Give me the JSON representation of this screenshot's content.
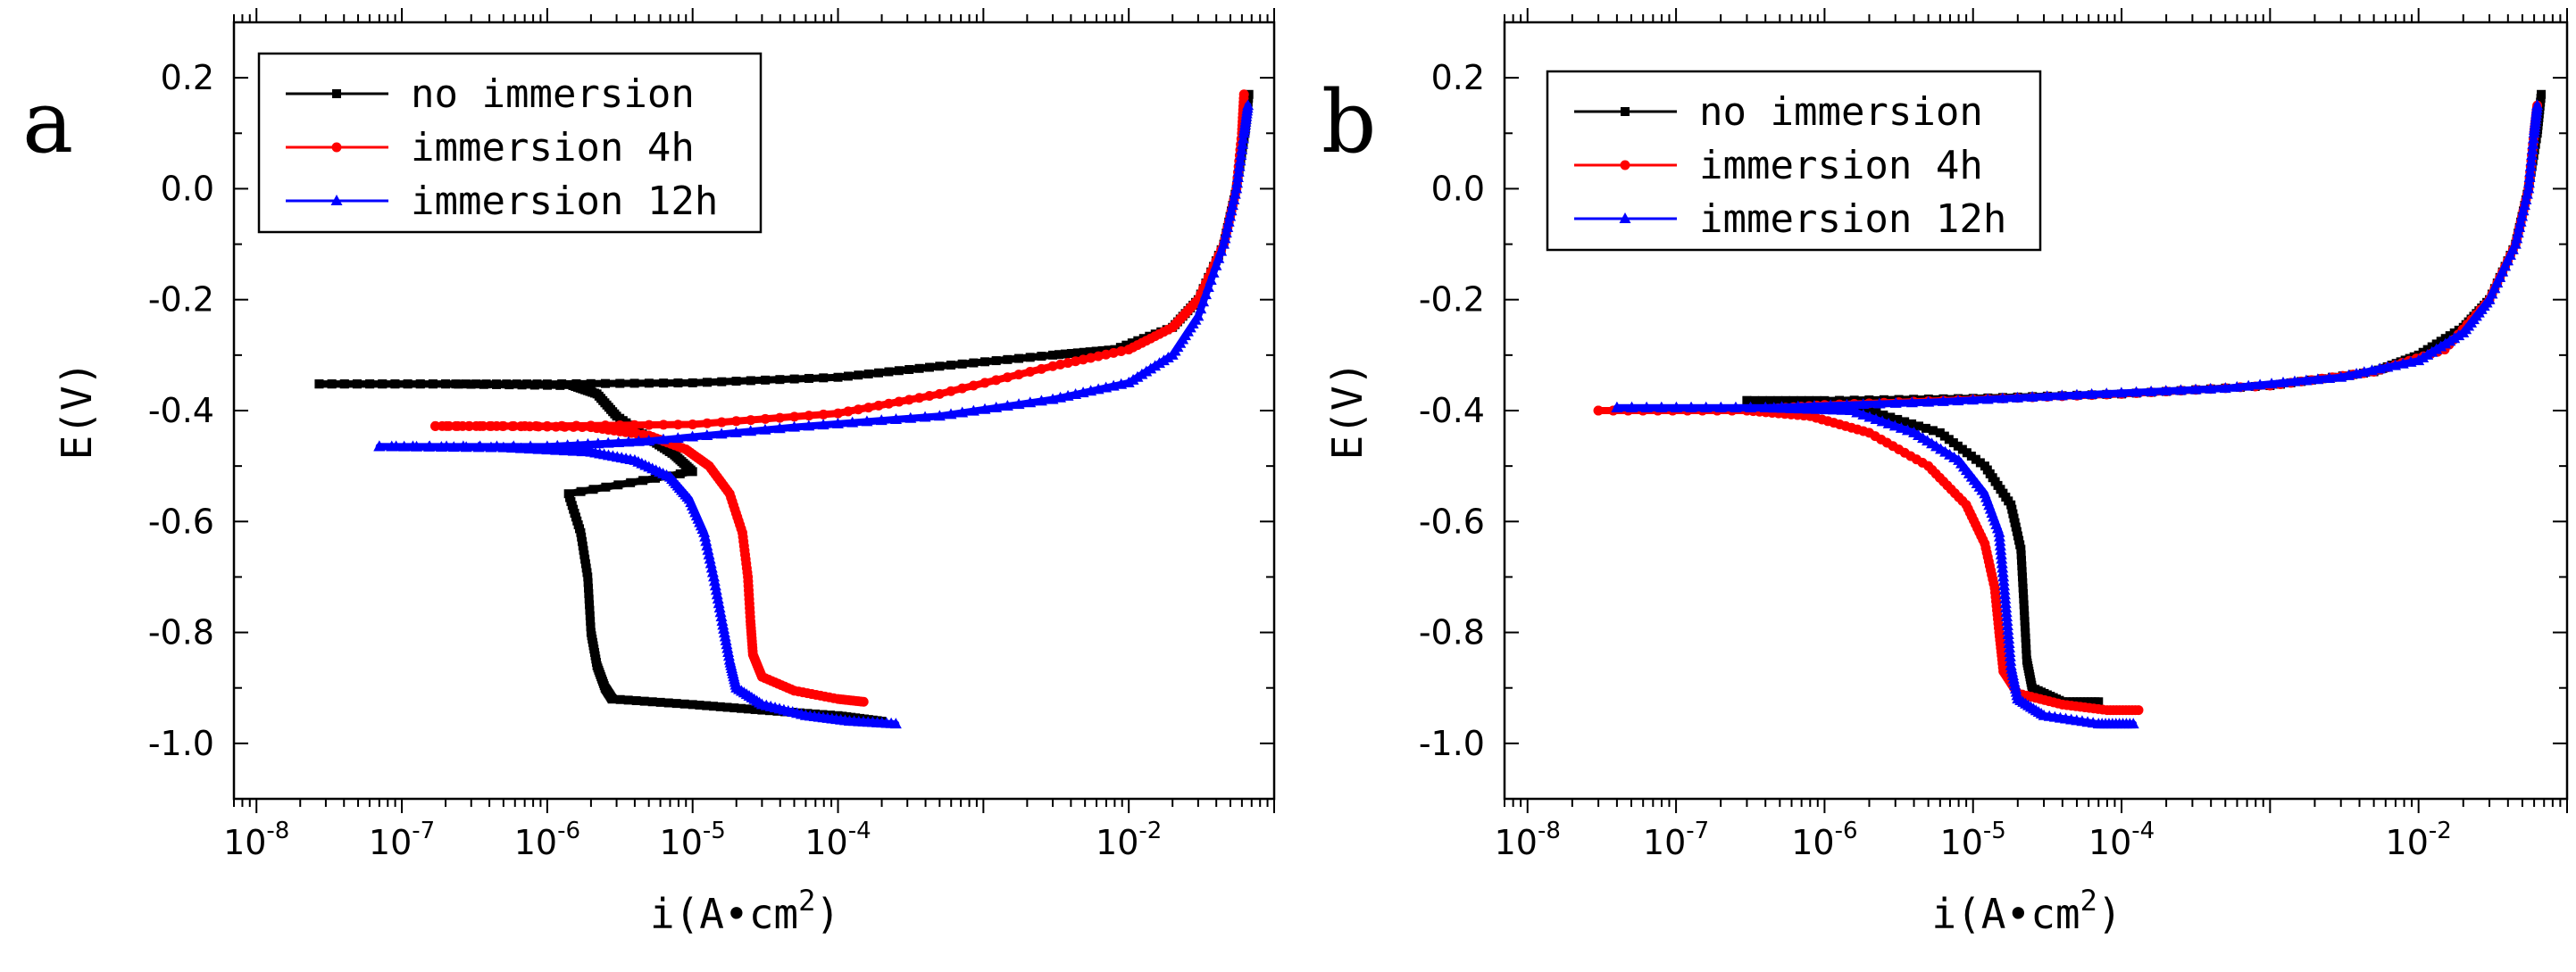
{
  "chart_data": [
    {
      "type": "line",
      "panel_label": "a",
      "xlabel": "i(A•cm",
      "xlabel_sup": "2",
      "xlabel_close": ")",
      "ylabel": "E(V)",
      "xscale": "log",
      "xlim": [
        7e-09,
        0.1
      ],
      "ylim": [
        -1.1,
        0.3
      ],
      "xticks": [
        {
          "value": 1e-08,
          "base": "10",
          "exp": "-8"
        },
        {
          "value": 1e-07,
          "base": "10",
          "exp": "-7"
        },
        {
          "value": 1e-06,
          "base": "10",
          "exp": "-6"
        },
        {
          "value": 1e-05,
          "base": "10",
          "exp": "-5"
        },
        {
          "value": 0.0001,
          "base": "10",
          "exp": "-4"
        },
        {
          "value": 0.01,
          "base": "10",
          "exp": "-2"
        }
      ],
      "yticks": [
        {
          "value": 0.2,
          "label": "0.2"
        },
        {
          "value": 0.0,
          "label": "0.0"
        },
        {
          "value": -0.2,
          "label": "-0.2"
        },
        {
          "value": -0.4,
          "label": "-0.4"
        },
        {
          "value": -0.6,
          "label": "-0.6"
        },
        {
          "value": -0.8,
          "label": "-0.8"
        },
        {
          "value": -1.0,
          "label": "-1.0"
        }
      ],
      "legend_position": "top-left",
      "series": [
        {
          "name": "no immersion",
          "color": "#000000",
          "marker": "square",
          "cathodic": [
            [
              2.8e-06,
              -0.92
            ],
            [
              2.5e-06,
              -0.9
            ],
            [
              2.2e-06,
              -0.86
            ],
            [
              2e-06,
              -0.8
            ],
            [
              1.9e-06,
              -0.7
            ],
            [
              1.7e-06,
              -0.62
            ],
            [
              1.4e-06,
              -0.55
            ],
            [
              1e-05,
              -0.51
            ],
            [
              7.5e-06,
              -0.48
            ],
            [
              5e-06,
              -0.45
            ],
            [
              3e-06,
              -0.41
            ],
            [
              2.2e-06,
              -0.37
            ],
            [
              1.5e-06,
              -0.355
            ],
            [
              2e-07,
              -0.352
            ],
            [
              2.7e-08,
              -0.352
            ]
          ],
          "anodic": [
            [
              2.7e-08,
              -0.352
            ],
            [
              2e-07,
              -0.352
            ],
            [
              1e-06,
              -0.352
            ],
            [
              1e-05,
              -0.35
            ],
            [
              0.0001,
              -0.34
            ],
            [
              0.0005,
              -0.32
            ],
            [
              0.003,
              -0.3
            ],
            [
              0.008,
              -0.29
            ],
            [
              0.02,
              -0.25
            ],
            [
              0.03,
              -0.2
            ],
            [
              0.045,
              -0.1
            ],
            [
              0.055,
              0.0
            ],
            [
              0.063,
              0.1
            ],
            [
              0.067,
              0.17
            ]
          ],
          "tail": [
            [
              2.8e-06,
              -0.92
            ],
            [
              1e-05,
              -0.93
            ],
            [
              3e-05,
              -0.94
            ],
            [
              0.0001,
              -0.95
            ],
            [
              0.0002,
              -0.96
            ]
          ]
        },
        {
          "name": "immersion 4h",
          "color": "#ff0000",
          "marker": "circle",
          "cathodic": [
            [
              0.00015,
              -0.925
            ],
            [
              0.0001,
              -0.92
            ],
            [
              5e-05,
              -0.905
            ],
            [
              3e-05,
              -0.88
            ],
            [
              2.6e-05,
              -0.84
            ],
            [
              2.5e-05,
              -0.78
            ],
            [
              2.4e-05,
              -0.7
            ],
            [
              2.2e-05,
              -0.62
            ],
            [
              1.8e-05,
              -0.55
            ],
            [
              1.3e-05,
              -0.5
            ],
            [
              9e-06,
              -0.47
            ],
            [
              5e-06,
              -0.445
            ],
            [
              2e-06,
              -0.43
            ],
            [
              5e-07,
              -0.428
            ],
            [
              1.7e-07,
              -0.428
            ]
          ],
          "anodic": [
            [
              1.7e-07,
              -0.428
            ],
            [
              1e-06,
              -0.428
            ],
            [
              1e-05,
              -0.425
            ],
            [
              0.0001,
              -0.405
            ],
            [
              0.0005,
              -0.37
            ],
            [
              0.003,
              -0.32
            ],
            [
              0.01,
              -0.29
            ],
            [
              0.02,
              -0.25
            ],
            [
              0.03,
              -0.2
            ],
            [
              0.045,
              -0.1
            ],
            [
              0.055,
              0.0
            ],
            [
              0.06,
              0.1
            ],
            [
              0.062,
              0.17
            ]
          ]
        },
        {
          "name": "immersion 12h",
          "color": "#0000ff",
          "marker": "triangle",
          "cathodic": [
            [
              0.00025,
              -0.965
            ],
            [
              0.00012,
              -0.96
            ],
            [
              6e-05,
              -0.95
            ],
            [
              3e-05,
              -0.93
            ],
            [
              2e-05,
              -0.9
            ],
            [
              1.8e-05,
              -0.85
            ],
            [
              1.6e-05,
              -0.78
            ],
            [
              1.4e-05,
              -0.7
            ],
            [
              1.2e-05,
              -0.62
            ],
            [
              9.5e-06,
              -0.56
            ],
            [
              7e-06,
              -0.52
            ],
            [
              4e-06,
              -0.49
            ],
            [
              2e-06,
              -0.475
            ],
            [
              5e-07,
              -0.467
            ],
            [
              7e-08,
              -0.465
            ]
          ],
          "anodic": [
            [
              7e-08,
              -0.465
            ],
            [
              1e-06,
              -0.465
            ],
            [
              5e-06,
              -0.455
            ],
            [
              5e-05,
              -0.43
            ],
            [
              0.0005,
              -0.41
            ],
            [
              0.003,
              -0.38
            ],
            [
              0.01,
              -0.35
            ],
            [
              0.02,
              -0.3
            ],
            [
              0.03,
              -0.23
            ],
            [
              0.045,
              -0.1
            ],
            [
              0.055,
              0.0
            ],
            [
              0.062,
              0.1
            ],
            [
              0.066,
              0.15
            ]
          ]
        }
      ]
    },
    {
      "type": "line",
      "panel_label": "b",
      "xlabel": "i(A•cm",
      "xlabel_sup": "2",
      "xlabel_close": ")",
      "ylabel": "E(V)",
      "xscale": "log",
      "xlim": [
        7e-09,
        0.1
      ],
      "ylim": [
        -1.1,
        0.3
      ],
      "xticks": [
        {
          "value": 1e-08,
          "base": "10",
          "exp": "-8"
        },
        {
          "value": 1e-07,
          "base": "10",
          "exp": "-7"
        },
        {
          "value": 1e-06,
          "base": "10",
          "exp": "-6"
        },
        {
          "value": 1e-05,
          "base": "10",
          "exp": "-5"
        },
        {
          "value": 0.0001,
          "base": "10",
          "exp": "-4"
        },
        {
          "value": 0.01,
          "base": "10",
          "exp": "-2"
        }
      ],
      "yticks": [
        {
          "value": 0.2,
          "label": "0.2"
        },
        {
          "value": 0.0,
          "label": "0.0"
        },
        {
          "value": -0.2,
          "label": "-0.2"
        },
        {
          "value": -0.4,
          "label": "-0.4"
        },
        {
          "value": -0.6,
          "label": "-0.6"
        },
        {
          "value": -0.8,
          "label": "-0.8"
        },
        {
          "value": -1.0,
          "label": "-1.0"
        }
      ],
      "legend_position": "top-left",
      "series": [
        {
          "name": "no immersion",
          "color": "#000000",
          "marker": "square",
          "cathodic": [
            [
              7e-05,
              -0.925
            ],
            [
              4e-05,
              -0.925
            ],
            [
              2.5e-05,
              -0.9
            ],
            [
              2.3e-05,
              -0.85
            ],
            [
              2.2e-05,
              -0.75
            ],
            [
              2.1e-05,
              -0.65
            ],
            [
              1.8e-05,
              -0.57
            ],
            [
              1.2e-05,
              -0.5
            ],
            [
              6e-06,
              -0.44
            ],
            [
              2e-06,
              -0.4
            ],
            [
              8e-07,
              -0.385
            ],
            [
              3e-07,
              -0.382
            ]
          ],
          "anodic": [
            [
              3e-07,
              -0.382
            ],
            [
              1e-06,
              -0.382
            ],
            [
              1e-05,
              -0.378
            ],
            [
              0.0001,
              -0.37
            ],
            [
              0.001,
              -0.355
            ],
            [
              0.005,
              -0.33
            ],
            [
              0.01,
              -0.3
            ],
            [
              0.02,
              -0.25
            ],
            [
              0.03,
              -0.2
            ],
            [
              0.045,
              -0.1
            ],
            [
              0.055,
              0.0
            ],
            [
              0.063,
              0.1
            ],
            [
              0.067,
              0.17
            ]
          ]
        },
        {
          "name": "immersion 4h",
          "color": "#ff0000",
          "marker": "circle",
          "cathodic": [
            [
              0.00013,
              -0.94
            ],
            [
              8e-05,
              -0.94
            ],
            [
              4e-05,
              -0.93
            ],
            [
              2e-05,
              -0.91
            ],
            [
              1.6e-05,
              -0.87
            ],
            [
              1.5e-05,
              -0.8
            ],
            [
              1.4e-05,
              -0.72
            ],
            [
              1.2e-05,
              -0.64
            ],
            [
              9e-06,
              -0.57
            ],
            [
              5e-06,
              -0.5
            ],
            [
              2e-06,
              -0.44
            ],
            [
              8e-07,
              -0.41
            ],
            [
              3e-07,
              -0.4
            ],
            [
              3e-08,
              -0.4
            ]
          ],
          "anodic": [
            [
              3e-08,
              -0.4
            ],
            [
              3e-07,
              -0.4
            ],
            [
              1e-06,
              -0.39
            ],
            [
              1e-05,
              -0.38
            ],
            [
              0.0001,
              -0.37
            ],
            [
              0.001,
              -0.355
            ],
            [
              0.005,
              -0.33
            ],
            [
              0.015,
              -0.29
            ],
            [
              0.03,
              -0.2
            ],
            [
              0.045,
              -0.1
            ],
            [
              0.055,
              0.0
            ],
            [
              0.06,
              0.1
            ],
            [
              0.063,
              0.15
            ]
          ]
        },
        {
          "name": "immersion 12h",
          "color": "#0000ff",
          "marker": "triangle",
          "cathodic": [
            [
              0.00012,
              -0.965
            ],
            [
              7e-05,
              -0.965
            ],
            [
              3e-05,
              -0.95
            ],
            [
              2e-05,
              -0.92
            ],
            [
              1.8e-05,
              -0.86
            ],
            [
              1.7e-05,
              -0.78
            ],
            [
              1.6e-05,
              -0.7
            ],
            [
              1.5e-05,
              -0.62
            ],
            [
              1.2e-05,
              -0.55
            ],
            [
              8e-06,
              -0.49
            ],
            [
              4e-06,
              -0.44
            ],
            [
              1.5e-06,
              -0.4
            ],
            [
              4e-07,
              -0.395
            ],
            [
              4e-08,
              -0.395
            ]
          ],
          "anodic": [
            [
              4e-08,
              -0.395
            ],
            [
              4e-07,
              -0.395
            ],
            [
              5e-06,
              -0.385
            ],
            [
              5e-05,
              -0.372
            ],
            [
              0.0005,
              -0.36
            ],
            [
              0.003,
              -0.34
            ],
            [
              0.01,
              -0.31
            ],
            [
              0.02,
              -0.26
            ],
            [
              0.03,
              -0.2
            ],
            [
              0.045,
              -0.1
            ],
            [
              0.055,
              0.0
            ],
            [
              0.06,
              0.1
            ],
            [
              0.063,
              0.15
            ]
          ]
        }
      ]
    }
  ]
}
